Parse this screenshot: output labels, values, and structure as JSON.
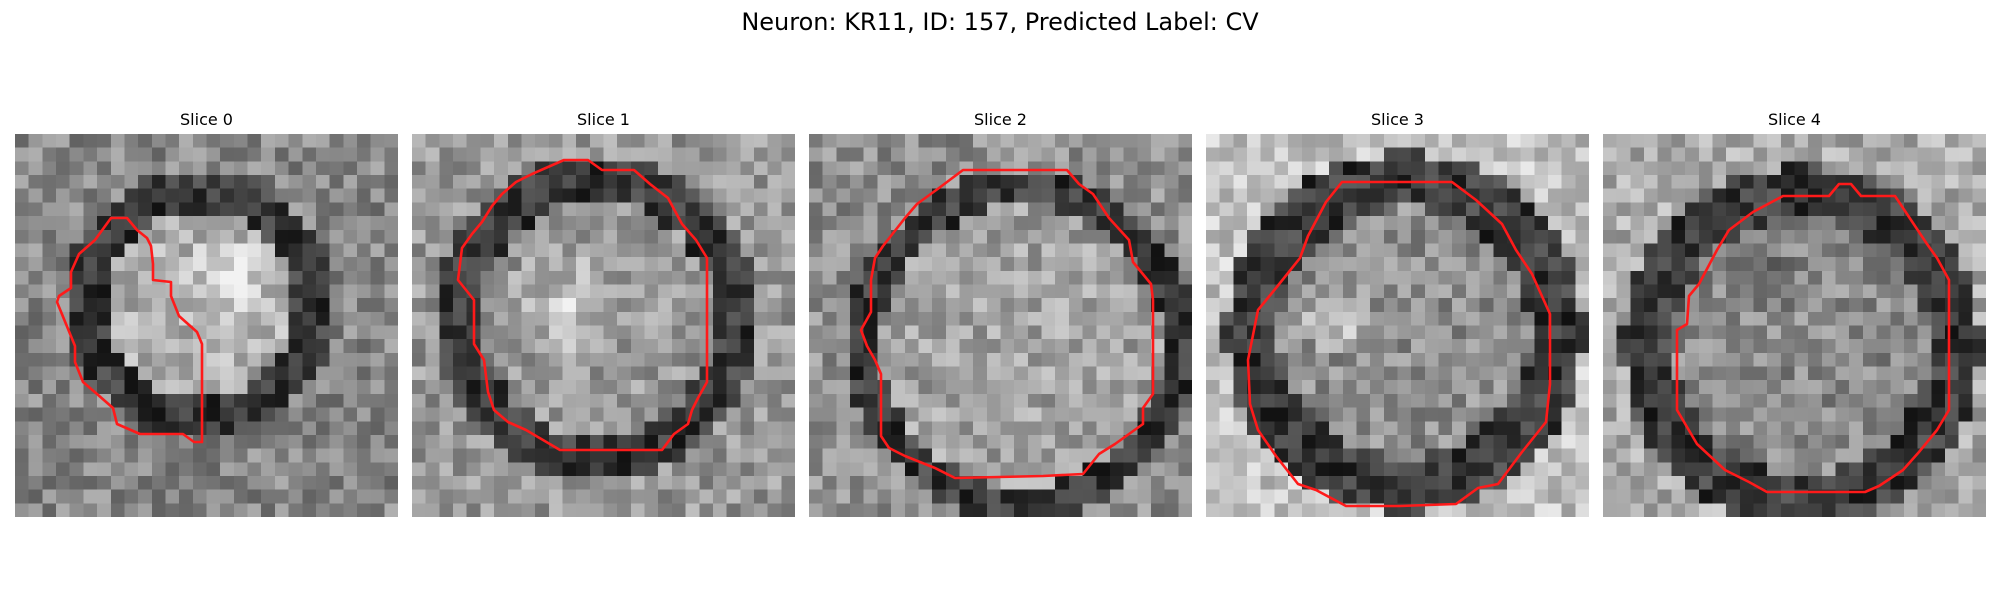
{
  "figure": {
    "title": "Neuron: KR11, ID: 157, Predicted Label: CV"
  },
  "panels": [
    {
      "title": "Slice 0"
    },
    {
      "title": "Slice 1"
    },
    {
      "title": "Slice 2"
    },
    {
      "title": "Slice 3"
    },
    {
      "title": "Slice 4"
    }
  ],
  "colors": {
    "contour": "#ff1a1a",
    "image_dark": "#050505",
    "image_light": "#f2f2f2"
  }
}
